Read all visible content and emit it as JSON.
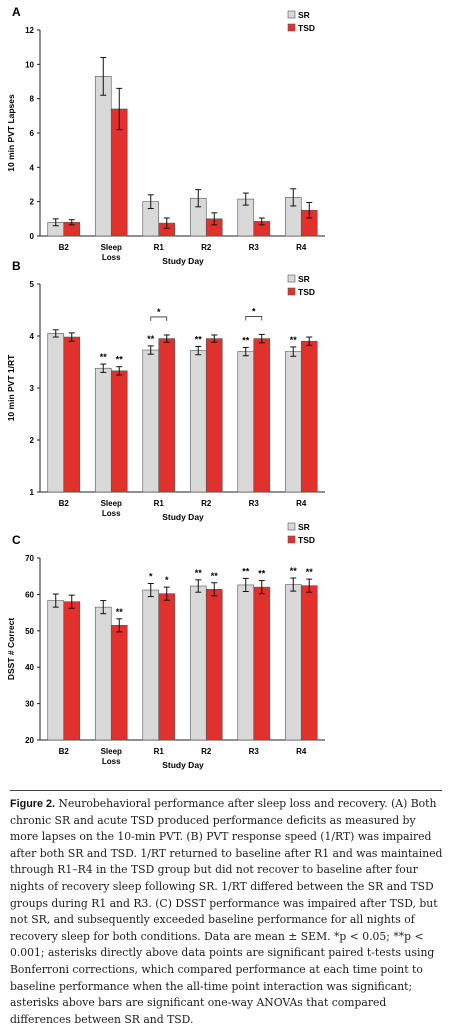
{
  "colors": {
    "sr": "#d9d9d9",
    "tsd": "#e0312d",
    "axis": "#222222"
  },
  "chart_data": [
    {
      "panel": "A",
      "type": "bar",
      "categories": [
        "B2",
        "Sleep Loss",
        "R1",
        "R2",
        "R3",
        "R4"
      ],
      "xlabel": "Study Day",
      "ylabel": "10 min PVT Lapses",
      "ylim": [
        0,
        12
      ],
      "yticks": [
        0,
        2,
        4,
        6,
        8,
        10,
        12
      ],
      "legend": "top-right",
      "series": [
        {
          "name": "SR",
          "values": [
            0.8,
            9.3,
            2.0,
            2.2,
            2.15,
            2.25
          ],
          "errors": [
            0.2,
            1.1,
            0.4,
            0.5,
            0.35,
            0.5
          ]
        },
        {
          "name": "TSD",
          "values": [
            0.8,
            7.4,
            0.75,
            1.0,
            0.85,
            1.5
          ],
          "errors": [
            0.15,
            1.2,
            0.3,
            0.35,
            0.2,
            0.45
          ]
        }
      ],
      "annotations": []
    },
    {
      "panel": "B",
      "type": "bar",
      "categories": [
        "B2",
        "Sleep Loss",
        "R1",
        "R2",
        "R3",
        "R4"
      ],
      "xlabel": "Study Day",
      "ylabel": "10 min PVT 1/RT",
      "ylim": [
        1,
        5
      ],
      "yticks": [
        1,
        2,
        3,
        4,
        5
      ],
      "legend": "top-right",
      "series": [
        {
          "name": "SR",
          "values": [
            4.05,
            3.38,
            3.73,
            3.72,
            3.7,
            3.7
          ],
          "errors": [
            0.07,
            0.08,
            0.08,
            0.08,
            0.08,
            0.09
          ]
        },
        {
          "name": "TSD",
          "values": [
            3.98,
            3.33,
            3.95,
            3.95,
            3.95,
            3.9
          ],
          "errors": [
            0.08,
            0.08,
            0.07,
            0.07,
            0.08,
            0.08
          ]
        }
      ],
      "annotations": [
        {
          "category": "Sleep Loss",
          "series": "SR",
          "text": "**"
        },
        {
          "category": "Sleep Loss",
          "series": "TSD",
          "text": "**"
        },
        {
          "category": "R1",
          "series": "SR",
          "text": "**"
        },
        {
          "category": "R2",
          "series": "SR",
          "text": "**"
        },
        {
          "category": "R3",
          "series": "SR",
          "text": "**"
        },
        {
          "category": "R4",
          "series": "SR",
          "text": "**"
        }
      ],
      "brackets": [
        {
          "category": "R1",
          "text": "*"
        },
        {
          "category": "R3",
          "text": "*"
        }
      ]
    },
    {
      "panel": "C",
      "type": "bar",
      "categories": [
        "B2",
        "Sleep Loss",
        "R1",
        "R2",
        "R3",
        "R4"
      ],
      "xlabel": "Study Day",
      "ylabel": "DSST # Correct",
      "ylim": [
        20,
        70
      ],
      "yticks": [
        20,
        30,
        40,
        50,
        60,
        70
      ],
      "legend": "top-right",
      "series": [
        {
          "name": "SR",
          "values": [
            58.3,
            56.5,
            61.2,
            62.3,
            62.6,
            62.7
          ],
          "errors": [
            1.8,
            1.8,
            1.8,
            1.7,
            1.8,
            1.8
          ]
        },
        {
          "name": "TSD",
          "values": [
            58.0,
            51.5,
            60.2,
            61.4,
            62.0,
            62.4
          ],
          "errors": [
            1.8,
            1.8,
            1.8,
            1.8,
            1.8,
            1.8
          ]
        }
      ],
      "annotations": [
        {
          "category": "Sleep Loss",
          "series": "TSD",
          "text": "**"
        },
        {
          "category": "R1",
          "series": "SR",
          "text": "*"
        },
        {
          "category": "R1",
          "series": "TSD",
          "text": "*"
        },
        {
          "category": "R2",
          "series": "SR",
          "text": "**"
        },
        {
          "category": "R2",
          "series": "TSD",
          "text": "**"
        },
        {
          "category": "R3",
          "series": "SR",
          "text": "**"
        },
        {
          "category": "R3",
          "series": "TSD",
          "text": "**"
        },
        {
          "category": "R4",
          "series": "SR",
          "text": "**"
        },
        {
          "category": "R4",
          "series": "TSD",
          "text": "**"
        }
      ],
      "brackets": []
    }
  ],
  "caption": {
    "label": "Figure 2.",
    "text": " Neurobehavioral performance after sleep loss and recovery. (A) Both chronic SR and acute TSD produced performance deficits as measured by more lapses on the 10-min PVT. (B) PVT response speed (1/RT) was impaired after both SR and TSD. 1/RT returned to baseline after R1 and was maintained through R1–R4 in the TSD group but did not recover to baseline after four nights of recovery sleep following SR. 1/RT differed between the SR and TSD groups during R1 and R3. (C) DSST performance was impaired after TSD, but not SR, and subsequently exceeded baseline performance for all nights of recovery sleep for both conditions. Data are mean ± SEM. *p < 0.05; **p < 0.001; asterisks directly above data points are significant paired t-tests using Bonferroni corrections, which compared performance at each time point to baseline performance when the all-time point interaction was significant; asterisks above bars are significant one-way ANOVAs that compared differences between SR and TSD."
  }
}
